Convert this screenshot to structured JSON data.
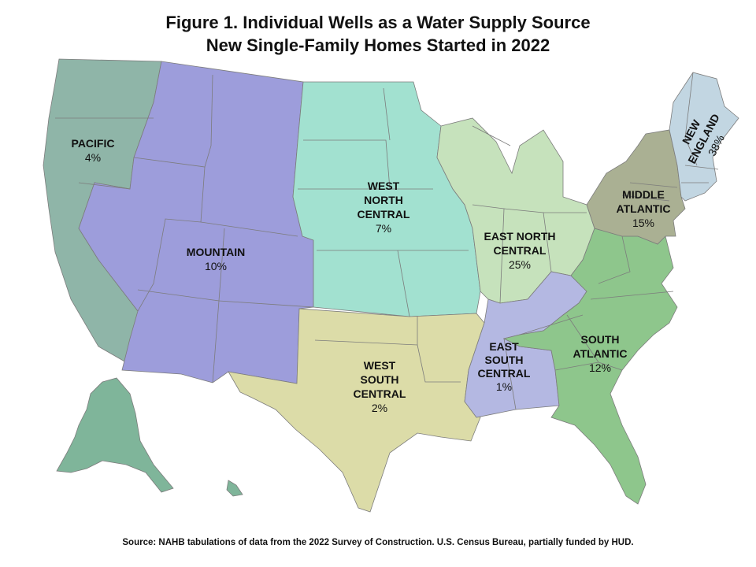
{
  "title_line1": "Figure 1. Individual Wells as a Water Supply Source",
  "title_line2": "New Single-Family Homes Started in 2022",
  "source": "Source: NAHB tabulations of data from the 2022  Survey of Construction.  U.S. Census  Bureau, partially funded by HUD.",
  "colors": {
    "pacific": "#8fb5a8",
    "alaska": "#7fb59a",
    "mountain": "#9d9ddb",
    "west_north_central": "#a2e1d0",
    "west_south_central": "#dcdca8",
    "east_north_central": "#c6e2bc",
    "east_south_central": "#b4b8e2",
    "south_atlantic": "#8ec68c",
    "middle_atlantic": "#aab093",
    "new_england": "#c2d6e2"
  },
  "regions": [
    {
      "id": "pacific",
      "name_lines": [
        "PACIFIC"
      ],
      "value": "4%"
    },
    {
      "id": "mountain",
      "name_lines": [
        "MOUNTAIN"
      ],
      "value": "10%"
    },
    {
      "id": "west_north_central",
      "name_lines": [
        "WEST",
        "NORTH",
        "CENTRAL"
      ],
      "value": "7%"
    },
    {
      "id": "west_south_central",
      "name_lines": [
        "WEST",
        "SOUTH",
        "CENTRAL"
      ],
      "value": "2%"
    },
    {
      "id": "east_north_central",
      "name_lines": [
        "EAST NORTH",
        "CENTRAL"
      ],
      "value": "25%"
    },
    {
      "id": "east_south_central",
      "name_lines": [
        "EAST",
        "SOUTH",
        "CENTRAL"
      ],
      "value": "1%"
    },
    {
      "id": "south_atlantic",
      "name_lines": [
        "SOUTH",
        "ATLANTIC"
      ],
      "value": "12%"
    },
    {
      "id": "middle_atlantic",
      "name_lines": [
        "MIDDLE",
        "ATLANTIC"
      ],
      "value": "15%"
    },
    {
      "id": "new_england",
      "name_lines": [
        "NEW",
        "ENGLAND"
      ],
      "value": "38%"
    }
  ]
}
